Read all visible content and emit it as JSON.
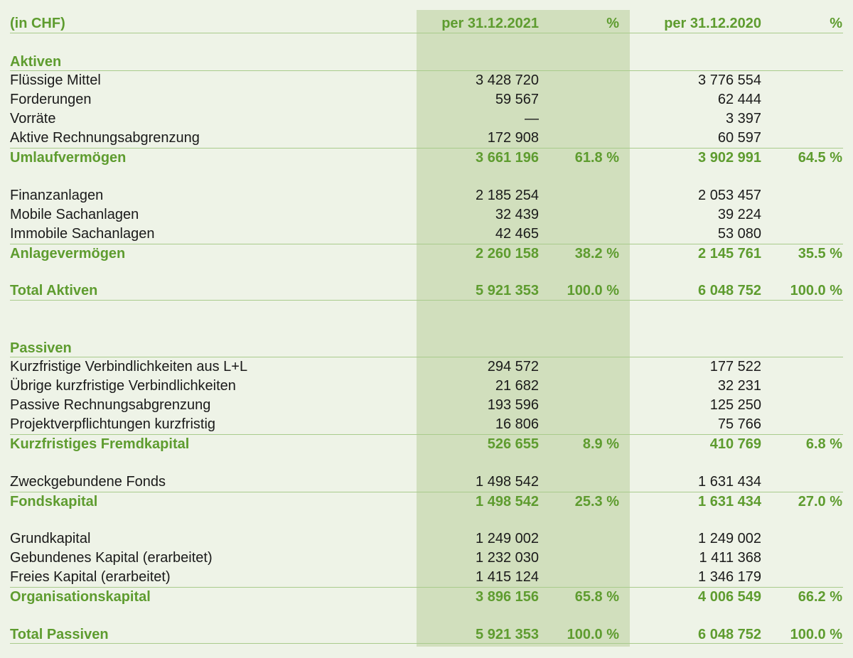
{
  "header": {
    "unit": "(in CHF)",
    "col1": "per 31.12.2021",
    "pct1": "%",
    "col2": "per 31.12.2020",
    "pct2": "%"
  },
  "colors": {
    "background": "#eef3e7",
    "highlight_band": "#d1dfbd",
    "accent": "#5e9c2f",
    "rule": "#a9cb8c"
  },
  "rows": [
    {
      "type": "blank"
    },
    {
      "type": "section",
      "label": "Aktiven"
    },
    {
      "type": "item",
      "label": "Flüssige Mittel",
      "v2021": "3 428 720",
      "v2020": "3 776 554"
    },
    {
      "type": "item",
      "label": "Forderungen",
      "v2021": "59 567",
      "v2020": "62 444"
    },
    {
      "type": "item",
      "label": "Vorräte",
      "v2021": "—",
      "v2020": "3 397"
    },
    {
      "type": "item",
      "label": "Aktive Rechnungsabgrenzung",
      "v2021": "172 908",
      "v2020": "60 597"
    },
    {
      "type": "subtotal",
      "label": "Umlaufvermögen",
      "v2021": "3 661 196",
      "p2021": "61.8 %",
      "v2020": "3 902 991",
      "p2020": "64.5 %"
    },
    {
      "type": "blank"
    },
    {
      "type": "item",
      "label": "Finanzanlagen",
      "v2021": "2 185 254",
      "v2020": "2 053 457"
    },
    {
      "type": "item",
      "label": "Mobile Sachanlagen",
      "v2021": "32 439",
      "v2020": "39 224"
    },
    {
      "type": "item",
      "label": "Immobile Sachanlagen",
      "v2021": "42 465",
      "v2020": "53 080"
    },
    {
      "type": "subtotal",
      "label": "Anlagevermögen",
      "v2021": "2 260 158",
      "p2021": "38.2 %",
      "v2020": "2 145 761",
      "p2020": "35.5 %"
    },
    {
      "type": "blank"
    },
    {
      "type": "total",
      "label": "Total Aktiven",
      "v2021": "5 921 353",
      "p2021": "100.0 %",
      "v2020": "6 048 752",
      "p2020": "100.0 %"
    },
    {
      "type": "blank"
    },
    {
      "type": "blank"
    },
    {
      "type": "section",
      "label": "Passiven"
    },
    {
      "type": "item",
      "label": "Kurzfristige Verbindlichkeiten aus L+L",
      "v2021": "294 572",
      "v2020": "177 522"
    },
    {
      "type": "item",
      "label": "Übrige kurzfristige Verbindlichkeiten",
      "v2021": "21 682",
      "v2020": "32 231"
    },
    {
      "type": "item",
      "label": "Passive Rechnungsabgrenzung",
      "v2021": "193 596",
      "v2020": "125 250"
    },
    {
      "type": "item",
      "label": "Projektverpflichtungen kurzfristig",
      "v2021": "16 806",
      "v2020": "75 766"
    },
    {
      "type": "subtotal",
      "label": "Kurzfristiges Fremdkapital",
      "v2021": "526 655",
      "p2021": "8.9 %",
      "v2020": "410 769",
      "p2020": "6.8 %"
    },
    {
      "type": "blank"
    },
    {
      "type": "item",
      "label": "Zweckgebundene Fonds",
      "v2021": "1 498 542",
      "v2020": "1 631 434"
    },
    {
      "type": "subtotal",
      "label": "Fondskapital",
      "v2021": "1 498 542",
      "p2021": "25.3 %",
      "v2020": "1 631 434",
      "p2020": "27.0 %"
    },
    {
      "type": "blank"
    },
    {
      "type": "item",
      "label": "Grundkapital",
      "v2021": "1 249 002",
      "v2020": "1 249 002"
    },
    {
      "type": "item",
      "label": "Gebundenes Kapital (erarbeitet)",
      "v2021": "1 232 030",
      "v2020": "1 411 368"
    },
    {
      "type": "item",
      "label": "Freies Kapital (erarbeitet)",
      "v2021": "1 415 124",
      "v2020": "1 346 179"
    },
    {
      "type": "subtotal",
      "label": "Organisationskapital",
      "v2021": "3 896 156",
      "p2021": "65.8 %",
      "v2020": "4 006 549",
      "p2020": "66.2 %"
    },
    {
      "type": "blank"
    },
    {
      "type": "total",
      "label": "Total Passiven",
      "v2021": "5 921 353",
      "p2021": "100.0 %",
      "v2020": "6 048 752",
      "p2020": "100.0 %"
    }
  ]
}
